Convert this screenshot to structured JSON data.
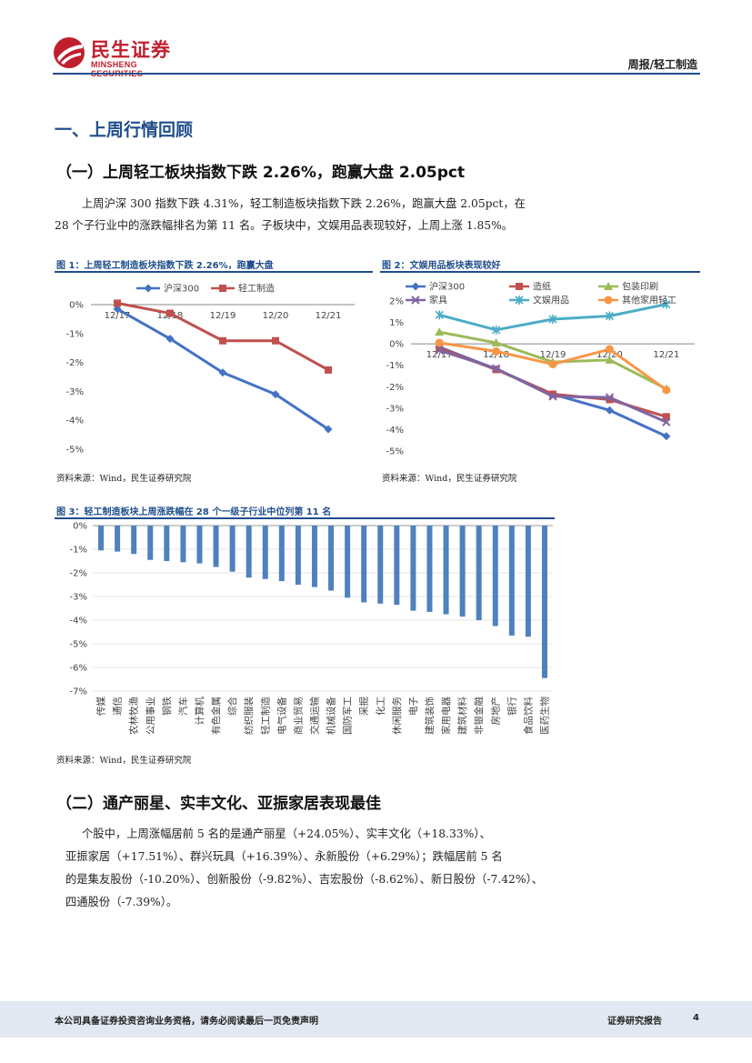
{
  "header": {
    "logo_cn": "民生证券",
    "logo_en": "MINSHENG SECURITIES",
    "report_type": "周报/轻工制造"
  },
  "section1": {
    "title": "一、上周行情回顾",
    "sub1": {
      "title": "（一）上周轻工板块指数下跌 2.26%，跑赢大盘 2.05pct",
      "para_line1": "上周沪深 300 指数下跌 4.31%，轻工制造板块指数下跌 2.26%，跑赢大盘 2.05pct，在",
      "para_line2": "28 个子行业中的涨跌幅排名为第 11 名。子板块中，文娱用品表现较好，上周上涨 1.85%。"
    },
    "sub2": {
      "title": "（二）通产丽星、实丰文化、亚振家居表现最佳",
      "para_line1": "个股中，上周涨幅居前 5 名的是通产丽星（+24.05%）、实丰文化（+18.33%）、",
      "para_line2": "亚振家居（+17.51%）、群兴玩具（+16.39%）、永新股份（+6.29%）；跌幅居前 5 名",
      "para_line3": "的是集友股份（-10.20%）、创新股份（-9.82%）、吉宏股份（-8.62%）、新日股份（-7.42%）、",
      "para_line4": "四通股份（-7.39%）。"
    }
  },
  "figures": {
    "fig1_title": "图 1：上周轻工制造板块指数下跌 2.26%，跑赢大盘",
    "fig2_title": "图 2：文娱用品板块表现较好",
    "fig3_title": "图 3：轻工制造板块上周涨跌幅在 28 个一级子行业中位列第 11 名",
    "source": "资料来源：Wind，民生证券研究院"
  },
  "chart_data": [
    {
      "type": "line",
      "title": "图 1：上周轻工制造板块指数下跌 2.26%，跑赢大盘",
      "x": [
        "12/17",
        "12/18",
        "12/19",
        "12/20",
        "12/21"
      ],
      "ylim": [
        -5,
        0
      ],
      "yticks": [
        0,
        -1,
        -2,
        -3,
        -4,
        -5
      ],
      "ytick_labels": [
        "0%",
        "-1%",
        "-2%",
        "-3%",
        "-4%",
        "-5%"
      ],
      "legend_position": "top",
      "series": [
        {
          "name": "沪深300",
          "color": "#4472c4",
          "marker": "diamond",
          "values": [
            -0.15,
            -1.18,
            -2.35,
            -3.1,
            -4.31
          ]
        },
        {
          "name": "轻工制造",
          "color": "#c0504d",
          "marker": "square",
          "values": [
            0.05,
            -0.3,
            -1.25,
            -1.25,
            -2.26
          ]
        }
      ]
    },
    {
      "type": "line",
      "title": "图 2：文娱用品板块表现较好",
      "x": [
        "12/17",
        "12/18",
        "12/19",
        "12/20",
        "12/21"
      ],
      "ylim": [
        -5,
        2
      ],
      "yticks": [
        2,
        1,
        0,
        -1,
        -2,
        -3,
        -4,
        -5
      ],
      "ytick_labels": [
        "2%",
        "1%",
        "0%",
        "-1%",
        "-2%",
        "-3%",
        "-4%",
        "-5%"
      ],
      "legend_position": "top",
      "series": [
        {
          "name": "沪深300",
          "color": "#4472c4",
          "marker": "diamond",
          "values": [
            -0.15,
            -1.18,
            -2.35,
            -3.1,
            -4.31
          ]
        },
        {
          "name": "造纸",
          "color": "#c0504d",
          "marker": "square",
          "values": [
            -0.2,
            -1.2,
            -2.35,
            -2.6,
            -3.4
          ]
        },
        {
          "name": "包装印刷",
          "color": "#9bbb59",
          "marker": "triangle",
          "values": [
            0.55,
            0.05,
            -0.85,
            -0.75,
            -2.1
          ]
        },
        {
          "name": "家具",
          "color": "#8064a2",
          "marker": "x",
          "values": [
            -0.3,
            -1.15,
            -2.45,
            -2.5,
            -3.65
          ]
        },
        {
          "name": "文娱用品",
          "color": "#4bacc6",
          "marker": "star",
          "values": [
            1.35,
            0.65,
            1.15,
            1.3,
            1.85
          ]
        },
        {
          "name": "其他家用轻工",
          "color": "#f79646",
          "marker": "circle",
          "values": [
            0.05,
            -0.35,
            -0.95,
            -0.25,
            -2.15
          ]
        }
      ]
    },
    {
      "type": "bar",
      "title": "图 3：轻工制造板块上周涨跌幅在 28 个一级子行业中位列第 11 名",
      "ylim": [
        -7,
        0
      ],
      "yticks": [
        0,
        -1,
        -2,
        -3,
        -4,
        -5,
        -6,
        -7
      ],
      "ytick_labels": [
        "0%",
        "-1%",
        "-2%",
        "-3%",
        "-4%",
        "-5%",
        "-6%",
        "-7%"
      ],
      "color": "#4f81bd",
      "categories": [
        "传媒",
        "通信",
        "农林牧渔",
        "公用事业",
        "钢铁",
        "汽车",
        "计算机",
        "有色金属",
        "综合",
        "纺织服装",
        "轻工制造",
        "电气设备",
        "商业贸易",
        "交通运输",
        "机械设备",
        "国防军工",
        "采掘",
        "化工",
        "休闲服务",
        "电子",
        "建筑装饰",
        "家用电器",
        "建筑材料",
        "非银金融",
        "房地产",
        "银行",
        "食品饮料",
        "医药生物"
      ],
      "values": [
        -1.05,
        -1.1,
        -1.2,
        -1.45,
        -1.5,
        -1.55,
        -1.6,
        -1.75,
        -1.95,
        -2.2,
        -2.26,
        -2.35,
        -2.5,
        -2.6,
        -2.75,
        -3.05,
        -3.25,
        -3.3,
        -3.35,
        -3.6,
        -3.65,
        -3.75,
        -3.85,
        -4.0,
        -4.25,
        -4.65,
        -4.7,
        -6.45
      ]
    }
  ],
  "footer": {
    "disclaimer": "本公司具备证券投资咨询业务资格，请务必阅读最后一页免责声明",
    "report_label": "证券研究报告",
    "page_number": "4"
  }
}
